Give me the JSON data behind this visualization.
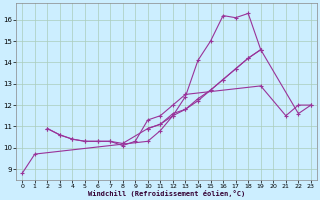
{
  "xlabel": "Windchill (Refroidissement éolien,°C)",
  "ylabel": "",
  "bg_color": "#cceeff",
  "grid_color": "#aaccbb",
  "line_color": "#993399",
  "xlim": [
    -0.5,
    23.5
  ],
  "ylim": [
    8.5,
    16.8
  ],
  "xticks": [
    0,
    1,
    2,
    3,
    4,
    5,
    6,
    7,
    8,
    9,
    10,
    11,
    12,
    13,
    14,
    15,
    16,
    17,
    18,
    19,
    20,
    21,
    22,
    23
  ],
  "yticks": [
    9,
    10,
    11,
    12,
    13,
    14,
    15,
    16
  ],
  "lines": [
    {
      "x": [
        0,
        1,
        10,
        11,
        12,
        13,
        14,
        15,
        16,
        17,
        18,
        19,
        22,
        23
      ],
      "y": [
        8.8,
        9.7,
        10.3,
        10.8,
        11.5,
        12.4,
        14.1,
        15.0,
        16.2,
        16.1,
        16.3,
        14.6,
        11.6,
        12.0
      ]
    },
    {
      "x": [
        2,
        3,
        4,
        5,
        6,
        7,
        8,
        9,
        10,
        11,
        12,
        13,
        19,
        21,
        22,
        23
      ],
      "y": [
        10.9,
        10.6,
        10.4,
        10.3,
        10.3,
        10.3,
        10.1,
        10.3,
        11.3,
        11.5,
        12.0,
        12.5,
        12.9,
        11.5,
        12.0,
        12.0
      ]
    },
    {
      "x": [
        2,
        3,
        4,
        5,
        6,
        7,
        8,
        10,
        11,
        12,
        13,
        14,
        15,
        16,
        17,
        18,
        19
      ],
      "y": [
        10.9,
        10.6,
        10.4,
        10.3,
        10.3,
        10.3,
        10.2,
        10.9,
        11.1,
        11.5,
        11.8,
        12.2,
        12.7,
        13.2,
        13.7,
        14.2,
        14.6
      ]
    },
    {
      "x": [
        10,
        11,
        12,
        13,
        14,
        15,
        16,
        17,
        18,
        19
      ],
      "y": [
        10.9,
        11.1,
        11.6,
        11.8,
        12.3,
        12.7,
        13.2,
        13.7,
        14.2,
        14.6
      ]
    }
  ]
}
